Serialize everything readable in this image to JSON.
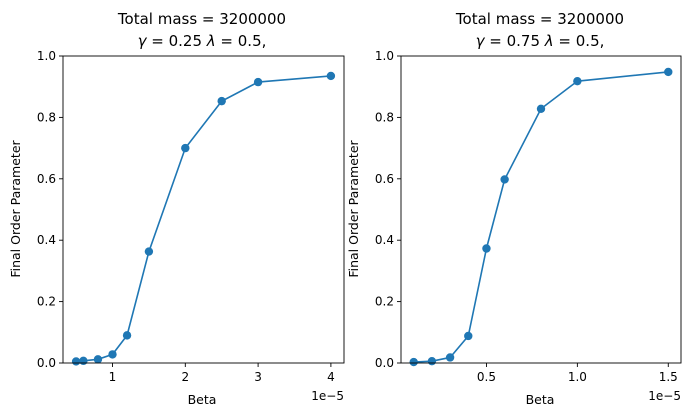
{
  "chart_data": [
    {
      "type": "line",
      "title_line1": "Total mass = 3200000",
      "title_line2_gamma": "γ",
      "title_line2_mid": " = 0.25 ",
      "title_line2_lambda": "λ",
      "title_line2_end": " = 0.5,",
      "xlabel": "Beta",
      "ylabel": "Final Order Parameter",
      "x_offset_label": "1e−5",
      "x_scale": 1e-05,
      "xlim": [
        0.32,
        4.18
      ],
      "ylim": [
        0,
        1.0
      ],
      "xticks": [
        1,
        2,
        3,
        4
      ],
      "xtick_labels": [
        "1",
        "2",
        "3",
        "4"
      ],
      "yticks": [
        0.0,
        0.2,
        0.4,
        0.6,
        0.8,
        1.0
      ],
      "ytick_labels": [
        "0.0",
        "0.2",
        "0.4",
        "0.6",
        "0.8",
        "1.0"
      ],
      "color": "#1f77b4",
      "x": [
        0.5,
        0.6,
        0.8,
        1.0,
        1.2,
        1.5,
        2.0,
        2.5,
        3.0,
        4.0
      ],
      "y": [
        0.005,
        0.007,
        0.012,
        0.028,
        0.09,
        0.363,
        0.7,
        0.853,
        0.915,
        0.935
      ]
    },
    {
      "type": "line",
      "title_line1": "Total mass = 3200000",
      "title_line2_gamma": "γ",
      "title_line2_mid": " = 0.75 ",
      "title_line2_lambda": "λ",
      "title_line2_end": " = 0.5,",
      "xlabel": "Beta",
      "ylabel": "Final Order Parameter",
      "x_offset_label": "1e−5",
      "x_scale": 1e-05,
      "xlim": [
        0.03,
        1.57
      ],
      "ylim": [
        0,
        1.0
      ],
      "xticks": [
        0.5,
        1.0,
        1.5
      ],
      "xtick_labels": [
        "0.5",
        "1.0",
        "1.5"
      ],
      "yticks": [
        0.0,
        0.2,
        0.4,
        0.6,
        0.8,
        1.0
      ],
      "ytick_labels": [
        "0.0",
        "0.2",
        "0.4",
        "0.6",
        "0.8",
        "1.0"
      ],
      "color": "#1f77b4",
      "x": [
        0.1,
        0.2,
        0.3,
        0.4,
        0.5,
        0.6,
        0.8,
        1.0,
        1.5
      ],
      "y": [
        0.003,
        0.006,
        0.018,
        0.088,
        0.373,
        0.598,
        0.828,
        0.918,
        0.948
      ]
    }
  ]
}
